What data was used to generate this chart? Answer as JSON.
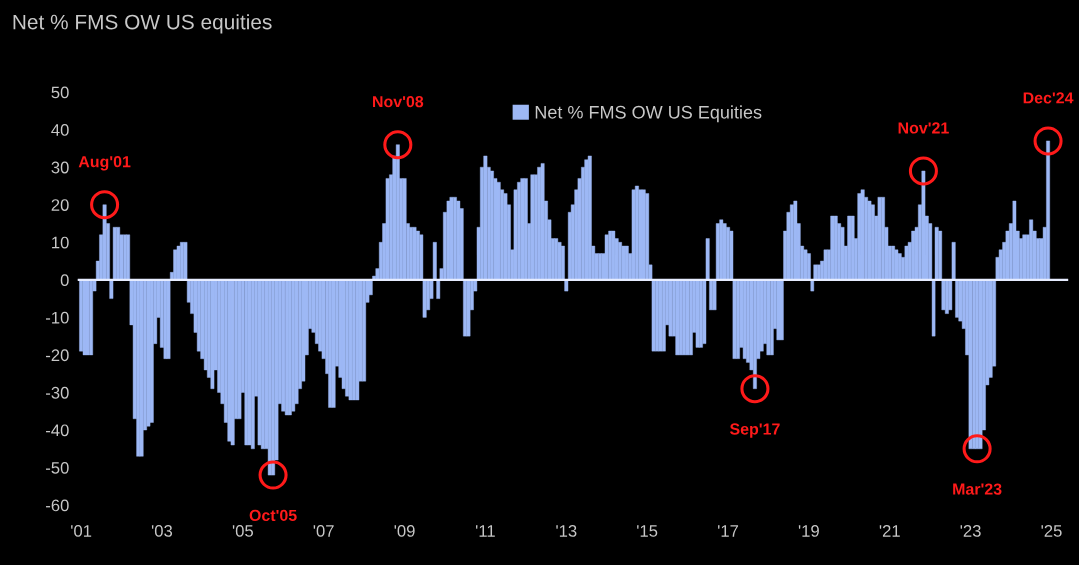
{
  "chart_data": {
    "type": "bar",
    "title": "Net % FMS OW US equities",
    "x": [
      "2001-01",
      "2001-02",
      "2001-03",
      "2001-04",
      "2001-05",
      "2001-06",
      "2001-07",
      "2001-08",
      "2001-09",
      "2001-10",
      "2001-11",
      "2001-12",
      "2002-01",
      "2002-02",
      "2002-03",
      "2002-04",
      "2002-05",
      "2002-06",
      "2002-07",
      "2002-08",
      "2002-09",
      "2002-10",
      "2002-11",
      "2002-12",
      "2003-01",
      "2003-02",
      "2003-03",
      "2003-04",
      "2003-05",
      "2003-06",
      "2003-07",
      "2003-08",
      "2003-09",
      "2003-10",
      "2003-11",
      "2003-12",
      "2004-01",
      "2004-02",
      "2004-03",
      "2004-04",
      "2004-05",
      "2004-06",
      "2004-07",
      "2004-08",
      "2004-09",
      "2004-10",
      "2004-11",
      "2004-12",
      "2005-01",
      "2005-02",
      "2005-03",
      "2005-04",
      "2005-05",
      "2005-06",
      "2005-07",
      "2005-08",
      "2005-09",
      "2005-10",
      "2005-11",
      "2005-12",
      "2006-01",
      "2006-02",
      "2006-03",
      "2006-04",
      "2006-05",
      "2006-06",
      "2006-07",
      "2006-08",
      "2006-09",
      "2006-10",
      "2006-11",
      "2006-12",
      "2007-01",
      "2007-02",
      "2007-03",
      "2007-04",
      "2007-05",
      "2007-06",
      "2007-07",
      "2007-08",
      "2007-09",
      "2007-10",
      "2007-11",
      "2007-12",
      "2008-01",
      "2008-02",
      "2008-03",
      "2008-04",
      "2008-05",
      "2008-06",
      "2008-07",
      "2008-08",
      "2008-09",
      "2008-10",
      "2008-11",
      "2008-12",
      "2009-01",
      "2009-02",
      "2009-03",
      "2009-04",
      "2009-05",
      "2009-06",
      "2009-07",
      "2009-08",
      "2009-09",
      "2009-10",
      "2009-11",
      "2009-12",
      "2010-01",
      "2010-02",
      "2010-03",
      "2010-04",
      "2010-05",
      "2010-06",
      "2010-07",
      "2010-08",
      "2010-09",
      "2010-10",
      "2010-11",
      "2010-12",
      "2011-01",
      "2011-02",
      "2011-03",
      "2011-04",
      "2011-05",
      "2011-06",
      "2011-07",
      "2011-08",
      "2011-09",
      "2011-10",
      "2011-11",
      "2011-12",
      "2012-01",
      "2012-02",
      "2012-03",
      "2012-04",
      "2012-05",
      "2012-06",
      "2012-07",
      "2012-08",
      "2012-09",
      "2012-10",
      "2012-11",
      "2012-12",
      "2013-01",
      "2013-02",
      "2013-03",
      "2013-04",
      "2013-05",
      "2013-06",
      "2013-07",
      "2013-08",
      "2013-09",
      "2013-10",
      "2013-11",
      "2013-12",
      "2014-01",
      "2014-02",
      "2014-03",
      "2014-04",
      "2014-05",
      "2014-06",
      "2014-07",
      "2014-08",
      "2014-09",
      "2014-10",
      "2014-11",
      "2014-12",
      "2015-01",
      "2015-02",
      "2015-03",
      "2015-04",
      "2015-05",
      "2015-06",
      "2015-07",
      "2015-08",
      "2015-09",
      "2015-10",
      "2015-11",
      "2015-12",
      "2016-01",
      "2016-02",
      "2016-03",
      "2016-04",
      "2016-05",
      "2016-06",
      "2016-07",
      "2016-08",
      "2016-09",
      "2016-10",
      "2016-11",
      "2016-12",
      "2017-01",
      "2017-02",
      "2017-03",
      "2017-04",
      "2017-05",
      "2017-06",
      "2017-07",
      "2017-08",
      "2017-09",
      "2017-10",
      "2017-11",
      "2017-12",
      "2018-01",
      "2018-02",
      "2018-03",
      "2018-04",
      "2018-05",
      "2018-06",
      "2018-07",
      "2018-08",
      "2018-09",
      "2018-10",
      "2018-11",
      "2018-12",
      "2019-01",
      "2019-02",
      "2019-03",
      "2019-04",
      "2019-05",
      "2019-06",
      "2019-07",
      "2019-08",
      "2019-09",
      "2019-10",
      "2019-11",
      "2019-12",
      "2020-01",
      "2020-02",
      "2020-03",
      "2020-04",
      "2020-05",
      "2020-06",
      "2020-07",
      "2020-08",
      "2020-09",
      "2020-10",
      "2020-11",
      "2020-12",
      "2021-01",
      "2021-02",
      "2021-03",
      "2021-04",
      "2021-05",
      "2021-06",
      "2021-07",
      "2021-08",
      "2021-09",
      "2021-10",
      "2021-11",
      "2021-12",
      "2022-01",
      "2022-02",
      "2022-03",
      "2022-04",
      "2022-05",
      "2022-06",
      "2022-07",
      "2022-08",
      "2022-09",
      "2022-10",
      "2022-11",
      "2022-12",
      "2023-01",
      "2023-02",
      "2023-03",
      "2023-04",
      "2023-05",
      "2023-06",
      "2023-07",
      "2023-08",
      "2023-09",
      "2023-10",
      "2023-11",
      "2023-12",
      "2024-01",
      "2024-02",
      "2024-03",
      "2024-04",
      "2024-05",
      "2024-06",
      "2024-07",
      "2024-08",
      "2024-09",
      "2024-10",
      "2024-11",
      "2024-12"
    ],
    "series": [
      {
        "name": "Net % FMS OW US Equities",
        "color": "#9db8f5",
        "values": [
          -19,
          -20,
          -20,
          -20,
          -3,
          5,
          12,
          20,
          15,
          -5,
          14,
          14,
          12,
          12,
          12,
          -12,
          -37,
          -47,
          -47,
          -40,
          -39,
          -38,
          -17,
          -10,
          -18,
          -21,
          -21,
          2,
          8,
          9,
          10,
          10,
          -6,
          -9,
          -14,
          -19,
          -21,
          -24,
          -26,
          -29,
          -24,
          -30,
          -33,
          -38,
          -43,
          -44,
          -37,
          -37,
          -30,
          -44,
          -44,
          -45,
          -31,
          -44,
          -45,
          -45,
          -52,
          -52,
          -48,
          -33,
          -35,
          -36,
          -36,
          -35,
          -33,
          -29,
          -27,
          -20,
          -13,
          -14,
          -17,
          -19,
          -21,
          -25,
          -34,
          -34,
          -23,
          -26,
          -29,
          -31,
          -32,
          -32,
          -32,
          -27,
          -27,
          -6,
          -4,
          1,
          3,
          10,
          15,
          27,
          28,
          33,
          36,
          27,
          27,
          15,
          14,
          14,
          13,
          12,
          -10,
          -8,
          -5,
          10,
          -5,
          3,
          18,
          21,
          22,
          22,
          21,
          19,
          -15,
          -15,
          -8,
          -3,
          14,
          30,
          33,
          30,
          29,
          27,
          26,
          24,
          23,
          20,
          8,
          24,
          26,
          27,
          27,
          15,
          28,
          28,
          30,
          31,
          21,
          16,
          11,
          11,
          10,
          9,
          -3,
          18,
          20,
          24,
          27,
          30,
          32,
          33,
          9,
          7,
          7,
          7,
          12,
          13,
          13,
          11,
          10,
          9,
          9,
          7,
          24,
          25,
          24,
          24,
          23,
          4,
          -19,
          -19,
          -19,
          -19,
          -12,
          -15,
          -15,
          -20,
          -20,
          -20,
          -20,
          -20,
          -14,
          -18,
          -18,
          -17,
          11,
          -8,
          -8,
          15,
          16,
          15,
          14,
          13,
          -21,
          -21,
          -18,
          -21,
          -22,
          -24,
          -29,
          -21,
          -19,
          -17,
          -20,
          -20,
          -13,
          -16,
          -16,
          13,
          18,
          20,
          21,
          15,
          9,
          8,
          7,
          -3,
          4,
          4,
          5,
          8,
          8,
          17,
          17,
          15,
          14,
          9,
          17,
          17,
          11,
          23,
          24,
          22,
          21,
          20,
          17,
          22,
          22,
          14,
          9,
          9,
          8,
          7,
          6,
          9,
          10,
          13,
          14,
          20,
          29,
          17,
          15,
          -15,
          14,
          13,
          -8,
          -9,
          -8,
          10,
          -10,
          -11,
          -13,
          -20,
          -45,
          -45,
          -45,
          -45,
          -40,
          -28,
          -26,
          -23,
          6,
          8,
          10,
          13,
          15,
          21,
          13,
          11,
          12,
          12,
          16,
          13,
          11,
          11,
          14,
          37
        ]
      }
    ],
    "xlim": [
      "2000-12",
      "2025-06"
    ],
    "xticks": [
      {
        "value": "2001-01",
        "label": "'01"
      },
      {
        "value": "2003-01",
        "label": "'03"
      },
      {
        "value": "2005-01",
        "label": "'05"
      },
      {
        "value": "2007-01",
        "label": "'07"
      },
      {
        "value": "2009-01",
        "label": "'09"
      },
      {
        "value": "2011-01",
        "label": "'11"
      },
      {
        "value": "2013-01",
        "label": "'13"
      },
      {
        "value": "2015-01",
        "label": "'15"
      },
      {
        "value": "2017-01",
        "label": "'17"
      },
      {
        "value": "2019-01",
        "label": "'19"
      },
      {
        "value": "2021-01",
        "label": "'21"
      },
      {
        "value": "2023-01",
        "label": "'23"
      },
      {
        "value": "2025-01",
        "label": "'25"
      }
    ],
    "ylim": [
      -60,
      50
    ],
    "yticks": [
      -60,
      -50,
      -40,
      -30,
      -20,
      -10,
      0,
      10,
      20,
      30,
      40,
      50
    ],
    "ref_lines": [
      {
        "axis": "y",
        "value": 0,
        "color": "#e6ecff"
      }
    ],
    "annotations": [
      {
        "text": "Aug'01",
        "x": "2001-08",
        "y": 20
      },
      {
        "text": "Oct'05",
        "x": "2005-10",
        "y": -52
      },
      {
        "text": "Nov'08",
        "x": "2008-11",
        "y": 36
      },
      {
        "text": "Sep'17",
        "x": "2017-09",
        "y": -29
      },
      {
        "text": "Nov'21",
        "x": "2021-11",
        "y": 29
      },
      {
        "text": "Mar'23",
        "x": "2023-03",
        "y": -45
      },
      {
        "text": "Dec'24",
        "x": "2024-12",
        "y": 37
      }
    ],
    "legend": "top",
    "grid": false
  }
}
